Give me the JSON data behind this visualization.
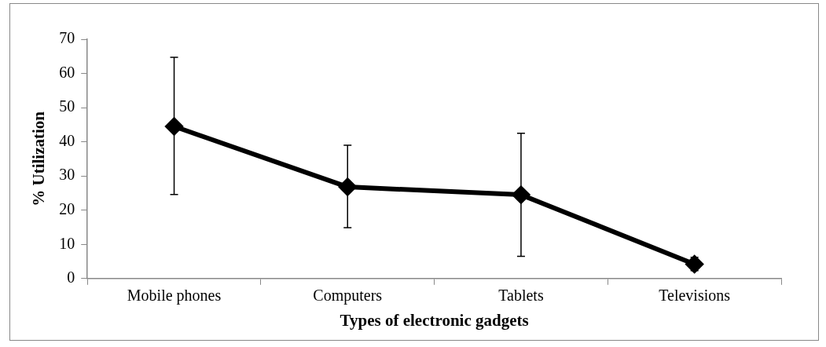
{
  "chart_data": {
    "type": "line",
    "xlabel": "Types of electronic gadgets",
    "ylabel": "% Utilization",
    "categories": [
      "Mobile phones",
      "Computers",
      "Tablets",
      "Televisions"
    ],
    "series": [
      {
        "color": "#000000",
        "values": [
          44.5,
          26.8,
          24.5,
          4.2
        ],
        "errors": [
          [
            24.6,
            64.7
          ],
          [
            14.9,
            39.0
          ],
          [
            6.5,
            42.5
          ],
          [
            2.3,
            6.2
          ]
        ]
      }
    ],
    "ylim": [
      0,
      70
    ],
    "yticks": [
      0,
      10,
      20,
      30,
      40,
      50,
      60,
      70
    ],
    "grid": false,
    "legend": false,
    "marker": "diamond",
    "line_style": "solid"
  }
}
